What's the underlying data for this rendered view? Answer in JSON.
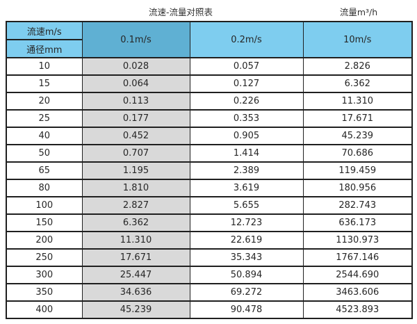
{
  "title": "流速-流量对照表",
  "unit_title": "流量m³/h",
  "corner": {
    "velocity_label": "流速m/s"
  },
  "chart_data": {
    "type": "table",
    "title": "流速-流量对照表",
    "flow_unit_label": "流量m³/h",
    "columns": [
      "通径mm",
      "0.1m/s",
      "0.2m/s",
      "10m/s"
    ],
    "highlighted_column": "0.1m/s",
    "rows": [
      [
        "10",
        "0.028",
        "0.057",
        "2.826"
      ],
      [
        "15",
        "0.064",
        "0.127",
        "6.362"
      ],
      [
        "20",
        "0.113",
        "0.226",
        "11.310"
      ],
      [
        "25",
        "0.177",
        "0.353",
        "17.671"
      ],
      [
        "40",
        "0.452",
        "0.905",
        "45.239"
      ],
      [
        "50",
        "0.707",
        "1.414",
        "70.686"
      ],
      [
        "65",
        "1.195",
        "2.389",
        "119.459"
      ],
      [
        "80",
        "1.810",
        "3.619",
        "180.956"
      ],
      [
        "100",
        "2.827",
        "5.655",
        "282.743"
      ],
      [
        "150",
        "6.362",
        "12.723",
        "636.173"
      ],
      [
        "200",
        "11.310",
        "22.619",
        "1130.973"
      ],
      [
        "250",
        "17.671",
        "35.343",
        "1767.146"
      ],
      [
        "300",
        "25.447",
        "50.894",
        "2544.690"
      ],
      [
        "350",
        "34.636",
        "69.272",
        "3463.606"
      ],
      [
        "400",
        "45.239",
        "90.478",
        "4523.893"
      ]
    ]
  },
  "colors": {
    "header_blue": "#7ecdef",
    "header_blue_selected": "#5fb0d3",
    "column_highlight": "#d9d9d9",
    "border": "#1f1f1f",
    "text": "#262626"
  }
}
